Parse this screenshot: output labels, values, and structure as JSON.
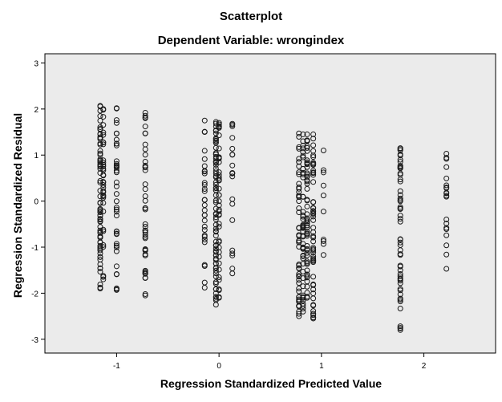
{
  "chart_data": {
    "type": "scatter",
    "title": "Scatterplot",
    "subtitle": "Dependent Variable: wrongindex",
    "xlabel": "Regression Standardized Predicted Value",
    "ylabel": "Regression Standardized Residual",
    "xlim": [
      -1.7,
      2.7
    ],
    "ylim": [
      -3.3,
      3.2
    ],
    "xticks": [
      -1,
      0,
      1,
      2
    ],
    "yticks": [
      -3,
      -2,
      -1,
      0,
      1,
      2,
      3
    ],
    "grid": false,
    "marker": "open-circle",
    "plot_background": "#ebebeb",
    "marker_color": "#1a1a1a",
    "columns": [
      {
        "x": -1.16,
        "ymin": -1.9,
        "ymax": 2.07,
        "n": 70
      },
      {
        "x": -1.13,
        "ymin": -1.7,
        "ymax": 2.0,
        "n": 35
      },
      {
        "x": -1.0,
        "ymin": -1.93,
        "ymax": 2.02,
        "n": 40
      },
      {
        "x": -0.72,
        "ymin": -2.05,
        "ymax": 1.92,
        "n": 45
      },
      {
        "x": -0.14,
        "ymin": -1.88,
        "ymax": 1.75,
        "n": 30
      },
      {
        "x": -0.03,
        "ymin": -2.25,
        "ymax": 1.72,
        "n": 75
      },
      {
        "x": 0.0,
        "ymin": -2.1,
        "ymax": 1.7,
        "n": 40
      },
      {
        "x": 0.13,
        "ymin": -1.57,
        "ymax": 1.68,
        "n": 20
      },
      {
        "x": 0.78,
        "ymin": -2.5,
        "ymax": 1.47,
        "n": 50
      },
      {
        "x": 0.82,
        "ymin": -2.4,
        "ymax": 1.45,
        "n": 45
      },
      {
        "x": 0.86,
        "ymin": -2.1,
        "ymax": 1.45,
        "n": 55
      },
      {
        "x": 0.92,
        "ymin": -2.55,
        "ymax": 1.45,
        "n": 55
      },
      {
        "x": 1.02,
        "ymin": -1.17,
        "ymax": 1.1,
        "n": 10
      },
      {
        "x": 1.77,
        "ymin": -2.8,
        "ymax": 1.15,
        "n": 55
      },
      {
        "x": 2.22,
        "ymin": -1.47,
        "ymax": 1.03,
        "n": 20
      }
    ]
  }
}
